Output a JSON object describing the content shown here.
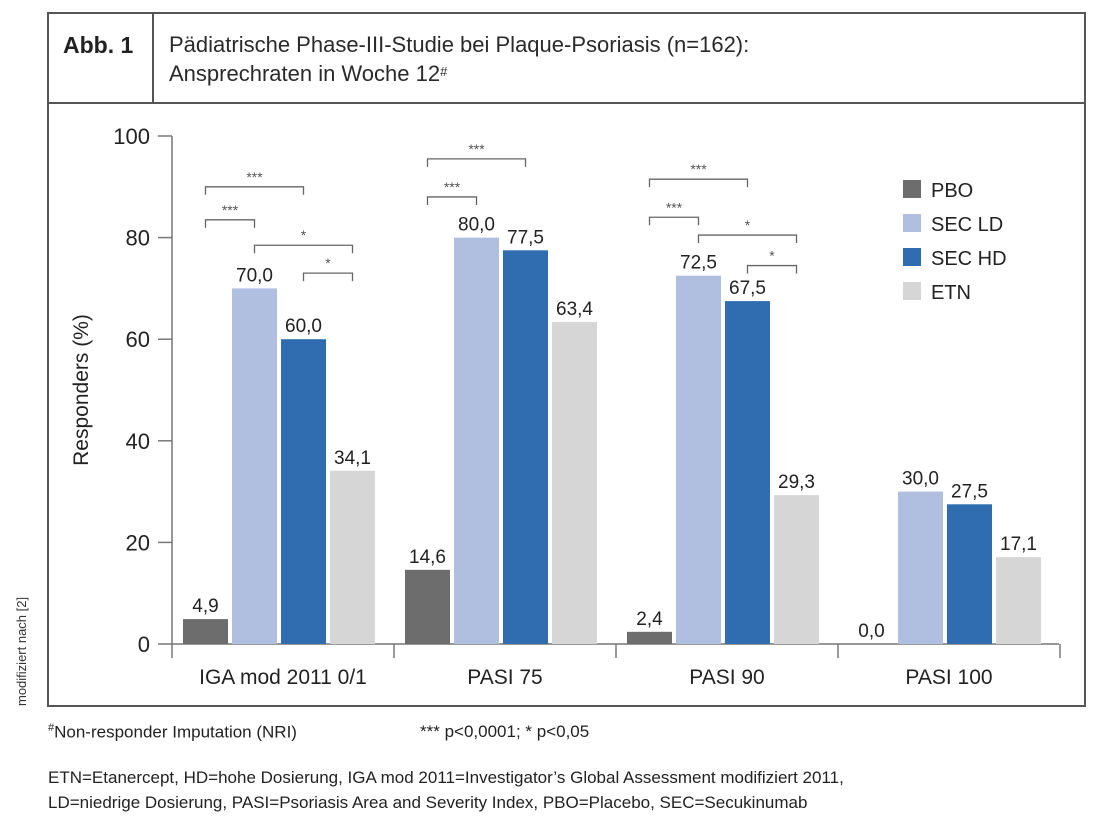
{
  "figure": {
    "label": "Abb. 1",
    "title_line1": "Pädiatrische Phase-III-Studie bei Plaque-Psoriasis (n=162):",
    "title_line2": "Ansprechraten in Woche 12",
    "title_marker": "#",
    "side_note": "modifiziert nach [2]"
  },
  "footnotes": {
    "nri_marker": "#",
    "nri_text": "Non-responder Imputation (NRI)",
    "significance": "*** p<0,0001; * p<0,05",
    "abbreviations_line1": "ETN=Etanercept, HD=hohe Dosierung, IGA mod 2011=Investigator’s Global Assessment modifiziert 2011,",
    "abbreviations_line2": "LD=niedrige Dosierung, PASI=Psoriasis Area and Severity Index, PBO=Placebo, SEC=Secukinumab"
  },
  "chart_data": {
    "type": "bar",
    "title": "Pädiatrische Phase-III-Studie bei Plaque-Psoriasis (n=162): Ansprechraten in Woche 12",
    "xlabel": "",
    "ylabel": "Responders (%)",
    "ylim": [
      0,
      100
    ],
    "yticks": [
      0,
      20,
      40,
      60,
      80,
      100
    ],
    "grid": false,
    "legend_position": "top-right",
    "categories": [
      "IGA mod 2011 0/1",
      "PASI 75",
      "PASI 90",
      "PASI 100"
    ],
    "series": [
      {
        "name": "PBO",
        "color": "#6d6d6d",
        "values": [
          4.9,
          14.6,
          2.4,
          0.0
        ],
        "labels": [
          "4,9",
          "14,6",
          "2,4",
          "0,0"
        ]
      },
      {
        "name": "SEC LD",
        "color": "#b0bfe0",
        "values": [
          70.0,
          80.0,
          72.5,
          30.0
        ],
        "labels": [
          "70,0",
          "80,0",
          "72,5",
          "30,0"
        ]
      },
      {
        "name": "SEC HD",
        "color": "#2f6cb0",
        "values": [
          60.0,
          77.5,
          67.5,
          27.5
        ],
        "labels": [
          "60,0",
          "77,5",
          "67,5",
          "27,5"
        ]
      },
      {
        "name": "ETN",
        "color": "#d6d6d6",
        "values": [
          34.1,
          63.4,
          29.3,
          17.1
        ],
        "labels": [
          "34,1",
          "63,4",
          "29,3",
          "17,1"
        ]
      }
    ],
    "significance_brackets": [
      {
        "category": 0,
        "from": "PBO",
        "to": "SEC HD",
        "label": "***",
        "level": 90
      },
      {
        "category": 0,
        "from": "PBO",
        "to": "SEC LD",
        "label": "***",
        "level": 83.5
      },
      {
        "category": 0,
        "from": "SEC LD",
        "to": "ETN",
        "label": "*",
        "level": 78.5
      },
      {
        "category": 0,
        "from": "SEC HD",
        "to": "ETN",
        "label": "*",
        "level": 73
      },
      {
        "category": 1,
        "from": "PBO",
        "to": "SEC HD",
        "label": "***",
        "level": 95.5
      },
      {
        "category": 1,
        "from": "PBO",
        "to": "SEC LD",
        "label": "***",
        "level": 88
      },
      {
        "category": 2,
        "from": "PBO",
        "to": "SEC HD",
        "label": "***",
        "level": 91.5
      },
      {
        "category": 2,
        "from": "PBO",
        "to": "SEC LD",
        "label": "***",
        "level": 84
      },
      {
        "category": 2,
        "from": "SEC LD",
        "to": "ETN",
        "label": "*",
        "level": 80.5
      },
      {
        "category": 2,
        "from": "SEC HD",
        "to": "ETN",
        "label": "*",
        "level": 74.5
      }
    ]
  }
}
